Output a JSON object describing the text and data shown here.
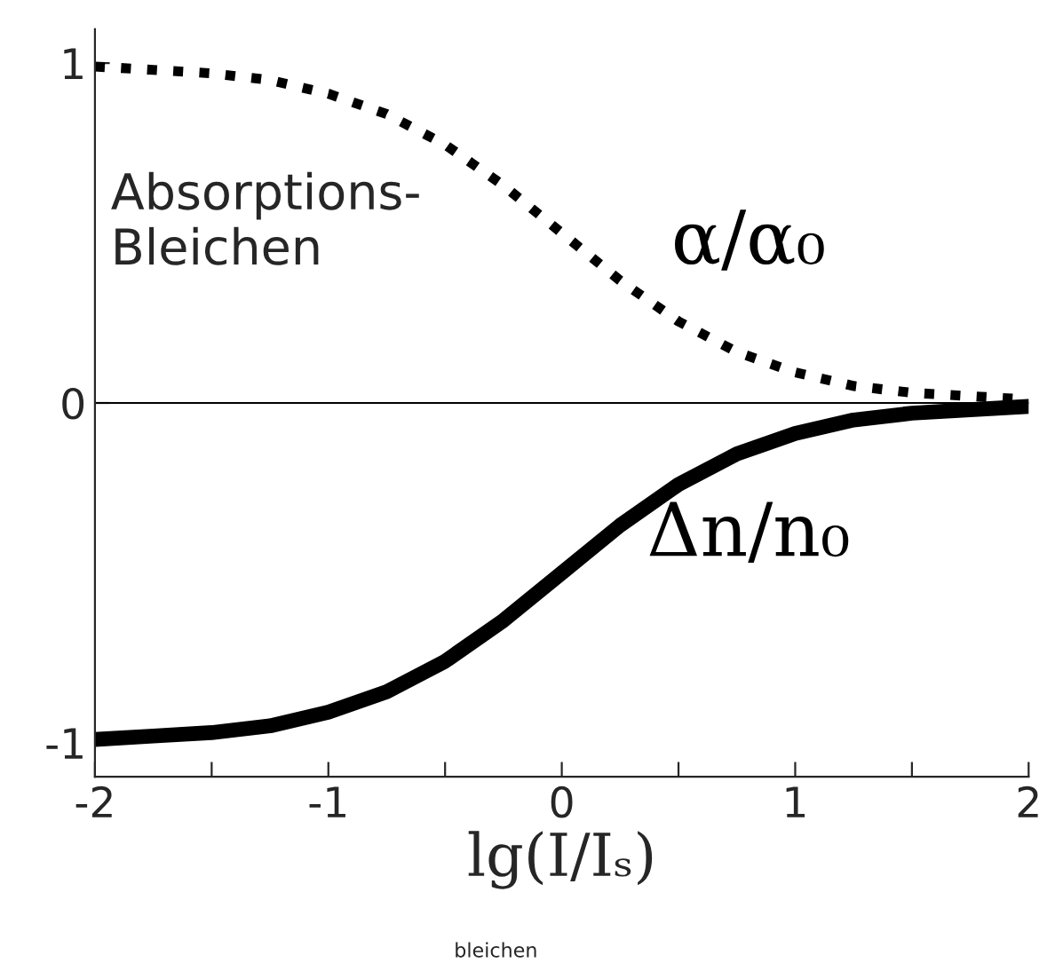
{
  "chart_data": {
    "type": "line",
    "xlabel": "lg(I/Iₛ)",
    "x": [
      -2,
      -1.75,
      -1.5,
      -1.25,
      -1,
      -0.75,
      -0.5,
      -0.25,
      0,
      0.25,
      0.5,
      0.75,
      1,
      1.25,
      1.5,
      1.75,
      2
    ],
    "series": [
      {
        "name": "α/α₀",
        "color": "#000000",
        "line_style": "dotted",
        "values": [
          0.99,
          0.98,
          0.97,
          0.95,
          0.91,
          0.85,
          0.76,
          0.64,
          0.5,
          0.36,
          0.24,
          0.15,
          0.09,
          0.05,
          0.03,
          0.02,
          0.01
        ]
      },
      {
        "name": "Δn/n₀",
        "color": "#000000",
        "line_style": "solid",
        "values": [
          -0.99,
          -0.98,
          -0.97,
          -0.95,
          -0.91,
          -0.85,
          -0.76,
          -0.64,
          -0.5,
          -0.36,
          -0.24,
          -0.15,
          -0.09,
          -0.05,
          -0.03,
          -0.02,
          -0.01
        ]
      }
    ],
    "xlim": [
      -2,
      2
    ],
    "ylim": [
      -1.1,
      1.1
    ],
    "xticks": [
      -2,
      {
        "value": -1.5,
        "label": null
      },
      -1,
      {
        "value": -0.5,
        "label": null
      },
      0,
      {
        "value": 0.5,
        "label": null
      },
      1,
      {
        "value": 1.5,
        "label": null
      },
      2
    ],
    "yticks": [
      -1,
      0,
      1
    ],
    "ref_lines": [
      {
        "axis": "y",
        "value": 0,
        "color": "#000000",
        "line_style": "solid"
      }
    ],
    "annotations": [
      "Absorptions-\nBleichen",
      "bleichen"
    ],
    "grid": false,
    "legend": false,
    "marker": "none"
  }
}
